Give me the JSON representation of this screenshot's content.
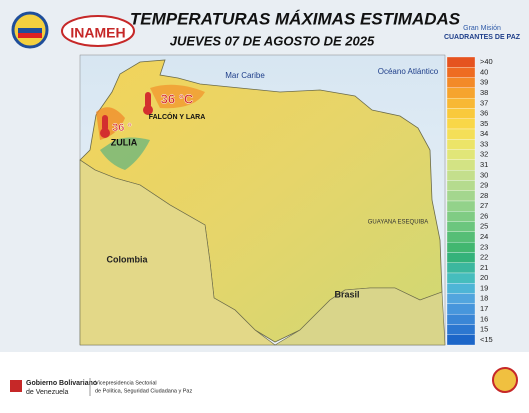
{
  "header": {
    "title": "TEMPERATURAS MÁXIMAS ESTIMADAS",
    "subtitle": "JUEVES 07 DE AGOSTO DE 2025",
    "logo_left": "INAMEH",
    "logo_right_top": "Gran Misión",
    "logo_right_bottom": "CUADRANTES DE PAZ"
  },
  "map": {
    "labels": [
      "Mar Caribe",
      "Océano Atlántico",
      "Colombia",
      "Brasil",
      "GUAYANA ESEQUIBA"
    ],
    "annotations": [
      {
        "value": "36 °C",
        "region": "FALCÓN Y LARA"
      },
      {
        "value": "36 °",
        "region": "ZULIA"
      }
    ]
  },
  "legend": {
    "items": [
      {
        "label": ">40",
        "color": "#e5531f"
      },
      {
        "label": "40",
        "color": "#ee6c22"
      },
      {
        "label": "39",
        "color": "#f38a28"
      },
      {
        "label": "38",
        "color": "#f6a42e"
      },
      {
        "label": "37",
        "color": "#f8b834"
      },
      {
        "label": "36",
        "color": "#f9c93c"
      },
      {
        "label": "35",
        "color": "#f9d748"
      },
      {
        "label": "34",
        "color": "#f4df58"
      },
      {
        "label": "33",
        "color": "#ece468"
      },
      {
        "label": "32",
        "color": "#e1e678"
      },
      {
        "label": "31",
        "color": "#d3e384"
      },
      {
        "label": "30",
        "color": "#c4df8c"
      },
      {
        "label": "29",
        "color": "#b5db8e"
      },
      {
        "label": "28",
        "color": "#a4d68e"
      },
      {
        "label": "27",
        "color": "#93d28a"
      },
      {
        "label": "26",
        "color": "#80cc84"
      },
      {
        "label": "25",
        "color": "#6cc67e"
      },
      {
        "label": "24",
        "color": "#56be76"
      },
      {
        "label": "23",
        "color": "#42b770"
      },
      {
        "label": "22",
        "color": "#34b27a"
      },
      {
        "label": "21",
        "color": "#3cb79e"
      },
      {
        "label": "20",
        "color": "#46bdbd"
      },
      {
        "label": "19",
        "color": "#4eb5d6"
      },
      {
        "label": "18",
        "color": "#52a5de"
      },
      {
        "label": "17",
        "color": "#4796dc"
      },
      {
        "label": "16",
        "color": "#3a86d6"
      },
      {
        "label": "15",
        "color": "#2c77d0"
      },
      {
        "label": "<15",
        "color": "#1c66c8"
      }
    ]
  },
  "footer": {
    "gov_line1": "Gobierno Bolivariano",
    "gov_line2": "de Venezuela",
    "vp_line1": "Vicepresidencia Sectorial",
    "vp_line2": "de Política, Seguridad Ciudadana y Paz"
  }
}
